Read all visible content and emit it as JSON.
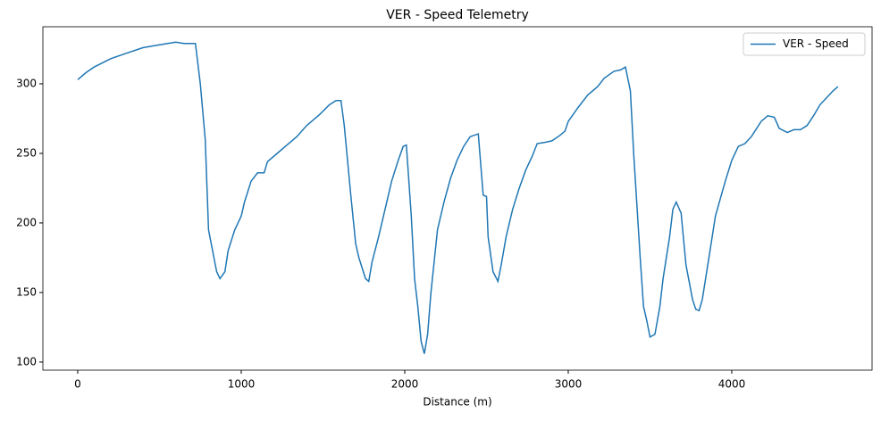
{
  "chart_data": {
    "type": "line",
    "title": "VER - Speed Telemetry",
    "x_label": "Distance (m)",
    "x": [
      0,
      50,
      100,
      200,
      300,
      400,
      500,
      600,
      650,
      700,
      720,
      750,
      780,
      800,
      850,
      870,
      900,
      920,
      960,
      1000,
      1020,
      1060,
      1100,
      1140,
      1160,
      1220,
      1280,
      1340,
      1400,
      1480,
      1540,
      1580,
      1610,
      1630,
      1670,
      1700,
      1720,
      1760,
      1780,
      1800,
      1840,
      1880,
      1920,
      1960,
      1990,
      2010,
      2040,
      2060,
      2080,
      2100,
      2120,
      2140,
      2160,
      2180,
      2200,
      2240,
      2280,
      2320,
      2360,
      2400,
      2450,
      2480,
      2500,
      2510,
      2540,
      2570,
      2590,
      2620,
      2660,
      2700,
      2740,
      2780,
      2810,
      2860,
      2900,
      2950,
      2980,
      3000,
      3060,
      3120,
      3180,
      3220,
      3280,
      3320,
      3350,
      3380,
      3400,
      3440,
      3460,
      3480,
      3500,
      3530,
      3560,
      3580,
      3620,
      3640,
      3660,
      3690,
      3720,
      3760,
      3780,
      3800,
      3820,
      3860,
      3900,
      3960,
      4000,
      4040,
      4080,
      4120,
      4180,
      4220,
      4260,
      4290,
      4340,
      4380,
      4420,
      4460,
      4500,
      4540,
      4580,
      4620,
      4650
    ],
    "series": [
      {
        "name": "VER - Speed",
        "color": "#1f77b4",
        "values": [
          303,
          308,
          312,
          318,
          322,
          326,
          328,
          330,
          329,
          329,
          329,
          300,
          260,
          195,
          165,
          160,
          165,
          180,
          195,
          205,
          215,
          230,
          236,
          236,
          244,
          250,
          256,
          262,
          270,
          278,
          285,
          288,
          288,
          270,
          220,
          185,
          175,
          160,
          158,
          172,
          190,
          210,
          230,
          245,
          255,
          256,
          205,
          160,
          140,
          115,
          106,
          120,
          150,
          172,
          195,
          215,
          232,
          245,
          255,
          262,
          264,
          220,
          219,
          190,
          165,
          158,
          170,
          190,
          210,
          225,
          238,
          248,
          257,
          258,
          259,
          263,
          266,
          273,
          283,
          292,
          298,
          304,
          309,
          310,
          312,
          295,
          250,
          175,
          140,
          130,
          118,
          120,
          140,
          160,
          190,
          210,
          215,
          207,
          170,
          145,
          138,
          137,
          145,
          175,
          205,
          230,
          245,
          255,
          257,
          262,
          273,
          277,
          276,
          268,
          265,
          267,
          267,
          270,
          277,
          285,
          290,
          295,
          298
        ]
      }
    ],
    "xlim": [
      -213,
      4858
    ],
    "ylim": [
      94.2,
      341
    ],
    "xticks": [
      0,
      1000,
      2000,
      3000,
      4000
    ],
    "yticks": [
      100,
      150,
      200,
      250,
      300
    ],
    "legend": "upper right"
  }
}
